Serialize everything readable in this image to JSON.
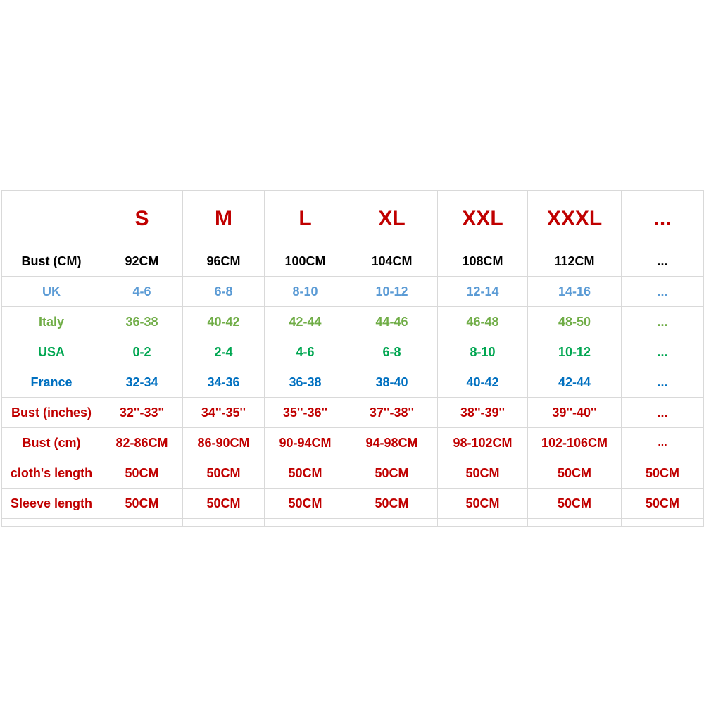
{
  "size_chart": {
    "sizes": [
      "S",
      "M",
      "L",
      "XL",
      "XXL",
      "XXXL",
      "..."
    ],
    "size_color": "#c00000",
    "rows": [
      {
        "label": "Bust (CM)",
        "color": "#000000",
        "values": [
          "92CM",
          "96CM",
          "100CM",
          "104CM",
          "108CM",
          "112CM",
          "..."
        ]
      },
      {
        "label": "UK",
        "color": "#5b9bd5",
        "values": [
          "4-6",
          "6-8",
          "8-10",
          "10-12",
          "12-14",
          "14-16",
          "..."
        ]
      },
      {
        "label": "Italy",
        "color": "#70ad47",
        "values": [
          "36-38",
          "40-42",
          "42-44",
          "44-46",
          "46-48",
          "48-50",
          "..."
        ]
      },
      {
        "label": "USA",
        "color": "#00a651",
        "values": [
          "0-2",
          "2-4",
          "4-6",
          "6-8",
          "8-10",
          "10-12",
          "..."
        ]
      },
      {
        "label": "France",
        "color": "#0070c0",
        "values": [
          "32-34",
          "34-36",
          "36-38",
          "38-40",
          "40-42",
          "42-44",
          "..."
        ]
      },
      {
        "label": "Bust (inches)",
        "color": "#c00000",
        "values": [
          "32''-33''",
          "34''-35''",
          "35''-36''",
          "37''-38''",
          "38''-39''",
          "39''-40''",
          "..."
        ]
      },
      {
        "label": "Bust (cm)",
        "color": "#c00000",
        "values": [
          "82-86CM",
          "86-90CM",
          "90-94CM",
          "94-98CM",
          "98-102CM",
          "102-106CM",
          "..."
        ]
      },
      {
        "label": "cloth's length",
        "color": "#c00000",
        "values": [
          "50CM",
          "50CM",
          "50CM",
          "50CM",
          "50CM",
          "50CM",
          "50CM"
        ]
      },
      {
        "label": "Sleeve length",
        "color": "#c00000",
        "values": [
          "50CM",
          "50CM",
          "50CM",
          "50CM",
          "50CM",
          "50CM",
          "50CM"
        ]
      }
    ]
  }
}
